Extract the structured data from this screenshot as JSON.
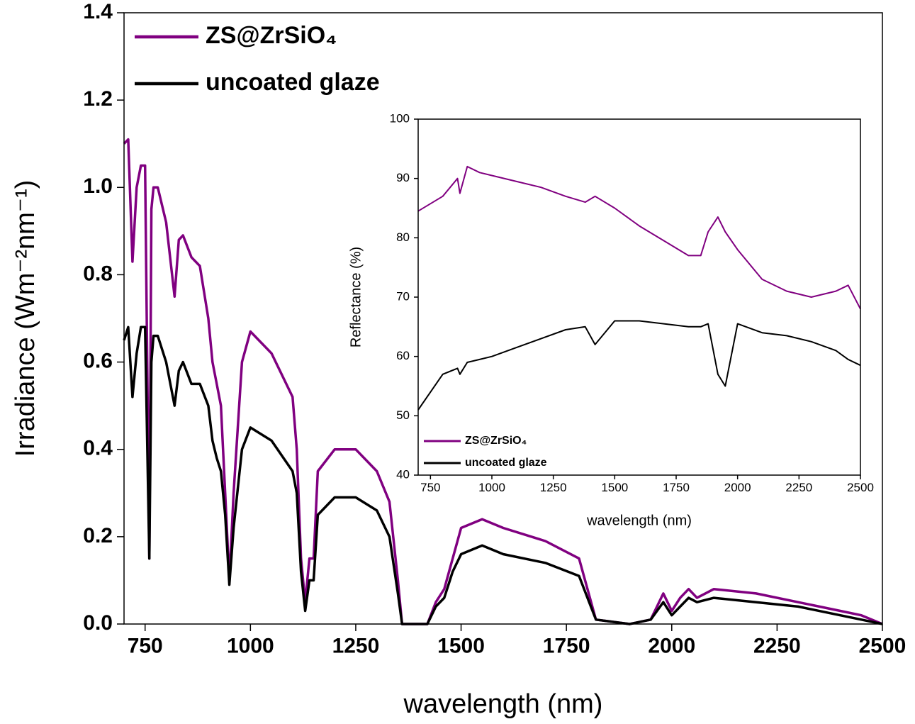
{
  "chart_data": [
    {
      "type": "line",
      "xlabel": "wavelength (nm)",
      "ylabel": "Irradiance (Wm⁻²nm⁻¹)",
      "x": [
        700,
        710,
        720,
        730,
        740,
        750,
        760,
        765,
        770,
        780,
        800,
        820,
        830,
        840,
        860,
        880,
        900,
        910,
        920,
        930,
        940,
        950,
        960,
        980,
        1000,
        1050,
        1100,
        1110,
        1120,
        1130,
        1140,
        1150,
        1160,
        1200,
        1250,
        1300,
        1330,
        1350,
        1360,
        1400,
        1420,
        1440,
        1460,
        1480,
        1500,
        1550,
        1600,
        1700,
        1780,
        1800,
        1820,
        1900,
        1950,
        1980,
        2000,
        2020,
        2040,
        2060,
        2100,
        2200,
        2300,
        2400,
        2450,
        2500
      ],
      "series": [
        {
          "name": "ZS@ZrSiO₄",
          "color": "#800080",
          "values": [
            1.1,
            1.11,
            0.83,
            1.0,
            1.05,
            1.05,
            0.15,
            0.95,
            1.0,
            1.0,
            0.92,
            0.75,
            0.88,
            0.89,
            0.84,
            0.82,
            0.7,
            0.6,
            0.55,
            0.5,
            0.3,
            0.1,
            0.3,
            0.6,
            0.67,
            0.62,
            0.52,
            0.4,
            0.15,
            0.05,
            0.15,
            0.15,
            0.35,
            0.4,
            0.4,
            0.35,
            0.28,
            0.1,
            0,
            0,
            0,
            0.05,
            0.08,
            0.15,
            0.22,
            0.24,
            0.22,
            0.19,
            0.15,
            0.08,
            0.01,
            0,
            0.01,
            0.07,
            0.03,
            0.06,
            0.08,
            0.06,
            0.08,
            0.07,
            0.05,
            0.03,
            0.02,
            0
          ]
        },
        {
          "name": "uncoated glaze",
          "color": "#000000",
          "values": [
            0.65,
            0.68,
            0.52,
            0.62,
            0.68,
            0.68,
            0.15,
            0.6,
            0.66,
            0.66,
            0.6,
            0.5,
            0.58,
            0.6,
            0.55,
            0.55,
            0.5,
            0.42,
            0.38,
            0.35,
            0.25,
            0.09,
            0.22,
            0.4,
            0.45,
            0.42,
            0.35,
            0.3,
            0.12,
            0.03,
            0.1,
            0.1,
            0.25,
            0.29,
            0.29,
            0.26,
            0.2,
            0.07,
            0,
            0,
            0,
            0.04,
            0.06,
            0.12,
            0.16,
            0.18,
            0.16,
            0.14,
            0.11,
            0.06,
            0.01,
            0,
            0.01,
            0.05,
            0.02,
            0.04,
            0.06,
            0.05,
            0.06,
            0.05,
            0.04,
            0.02,
            0.01,
            0
          ]
        }
      ],
      "xlim": [
        700,
        2500
      ],
      "xticks": [
        750,
        1000,
        1250,
        1500,
        1750,
        2000,
        2250,
        2500
      ],
      "ylim": [
        0,
        1.4
      ],
      "yticks": [
        {
          "value": 0,
          "label": "0.0"
        },
        0.2,
        0.4,
        0.6,
        0.8,
        {
          "value": 1,
          "label": "1.0"
        },
        1.2,
        1.4
      ],
      "legend": "upper left"
    },
    {
      "type": "line",
      "xlabel": "wavelength (nm)",
      "ylabel": "Reflectance (%)",
      "x": [
        700,
        800,
        860,
        870,
        900,
        950,
        1000,
        1100,
        1200,
        1300,
        1380,
        1420,
        1500,
        1600,
        1700,
        1800,
        1850,
        1880,
        1920,
        1950,
        2000,
        2100,
        2200,
        2300,
        2400,
        2450,
        2500
      ],
      "series": [
        {
          "name": "ZS@ZrSiO₄",
          "color": "#800080",
          "values": [
            84.5,
            87,
            90,
            87.5,
            92,
            91,
            90.5,
            89.5,
            88.5,
            87,
            86,
            87,
            85,
            82,
            79.5,
            77,
            77,
            81,
            83.5,
            81,
            78,
            73,
            71,
            70,
            71,
            72,
            68
          ]
        },
        {
          "name": "uncoated glaze",
          "color": "#000000",
          "values": [
            51,
            57,
            58,
            57,
            59,
            59.5,
            60,
            61.5,
            63,
            64.5,
            65,
            62,
            66,
            66,
            65.5,
            65,
            65,
            65.5,
            57,
            55,
            65.5,
            64,
            63.5,
            62.5,
            61,
            59.5,
            58.5
          ]
        }
      ],
      "xlim": [
        700,
        2500
      ],
      "xticks": [
        750,
        1000,
        1250,
        1500,
        1750,
        2000,
        2250,
        2500
      ],
      "ylim": [
        40,
        100
      ],
      "yticks": [
        40,
        50,
        60,
        70,
        80,
        90,
        100
      ],
      "legend": "lower left"
    }
  ]
}
